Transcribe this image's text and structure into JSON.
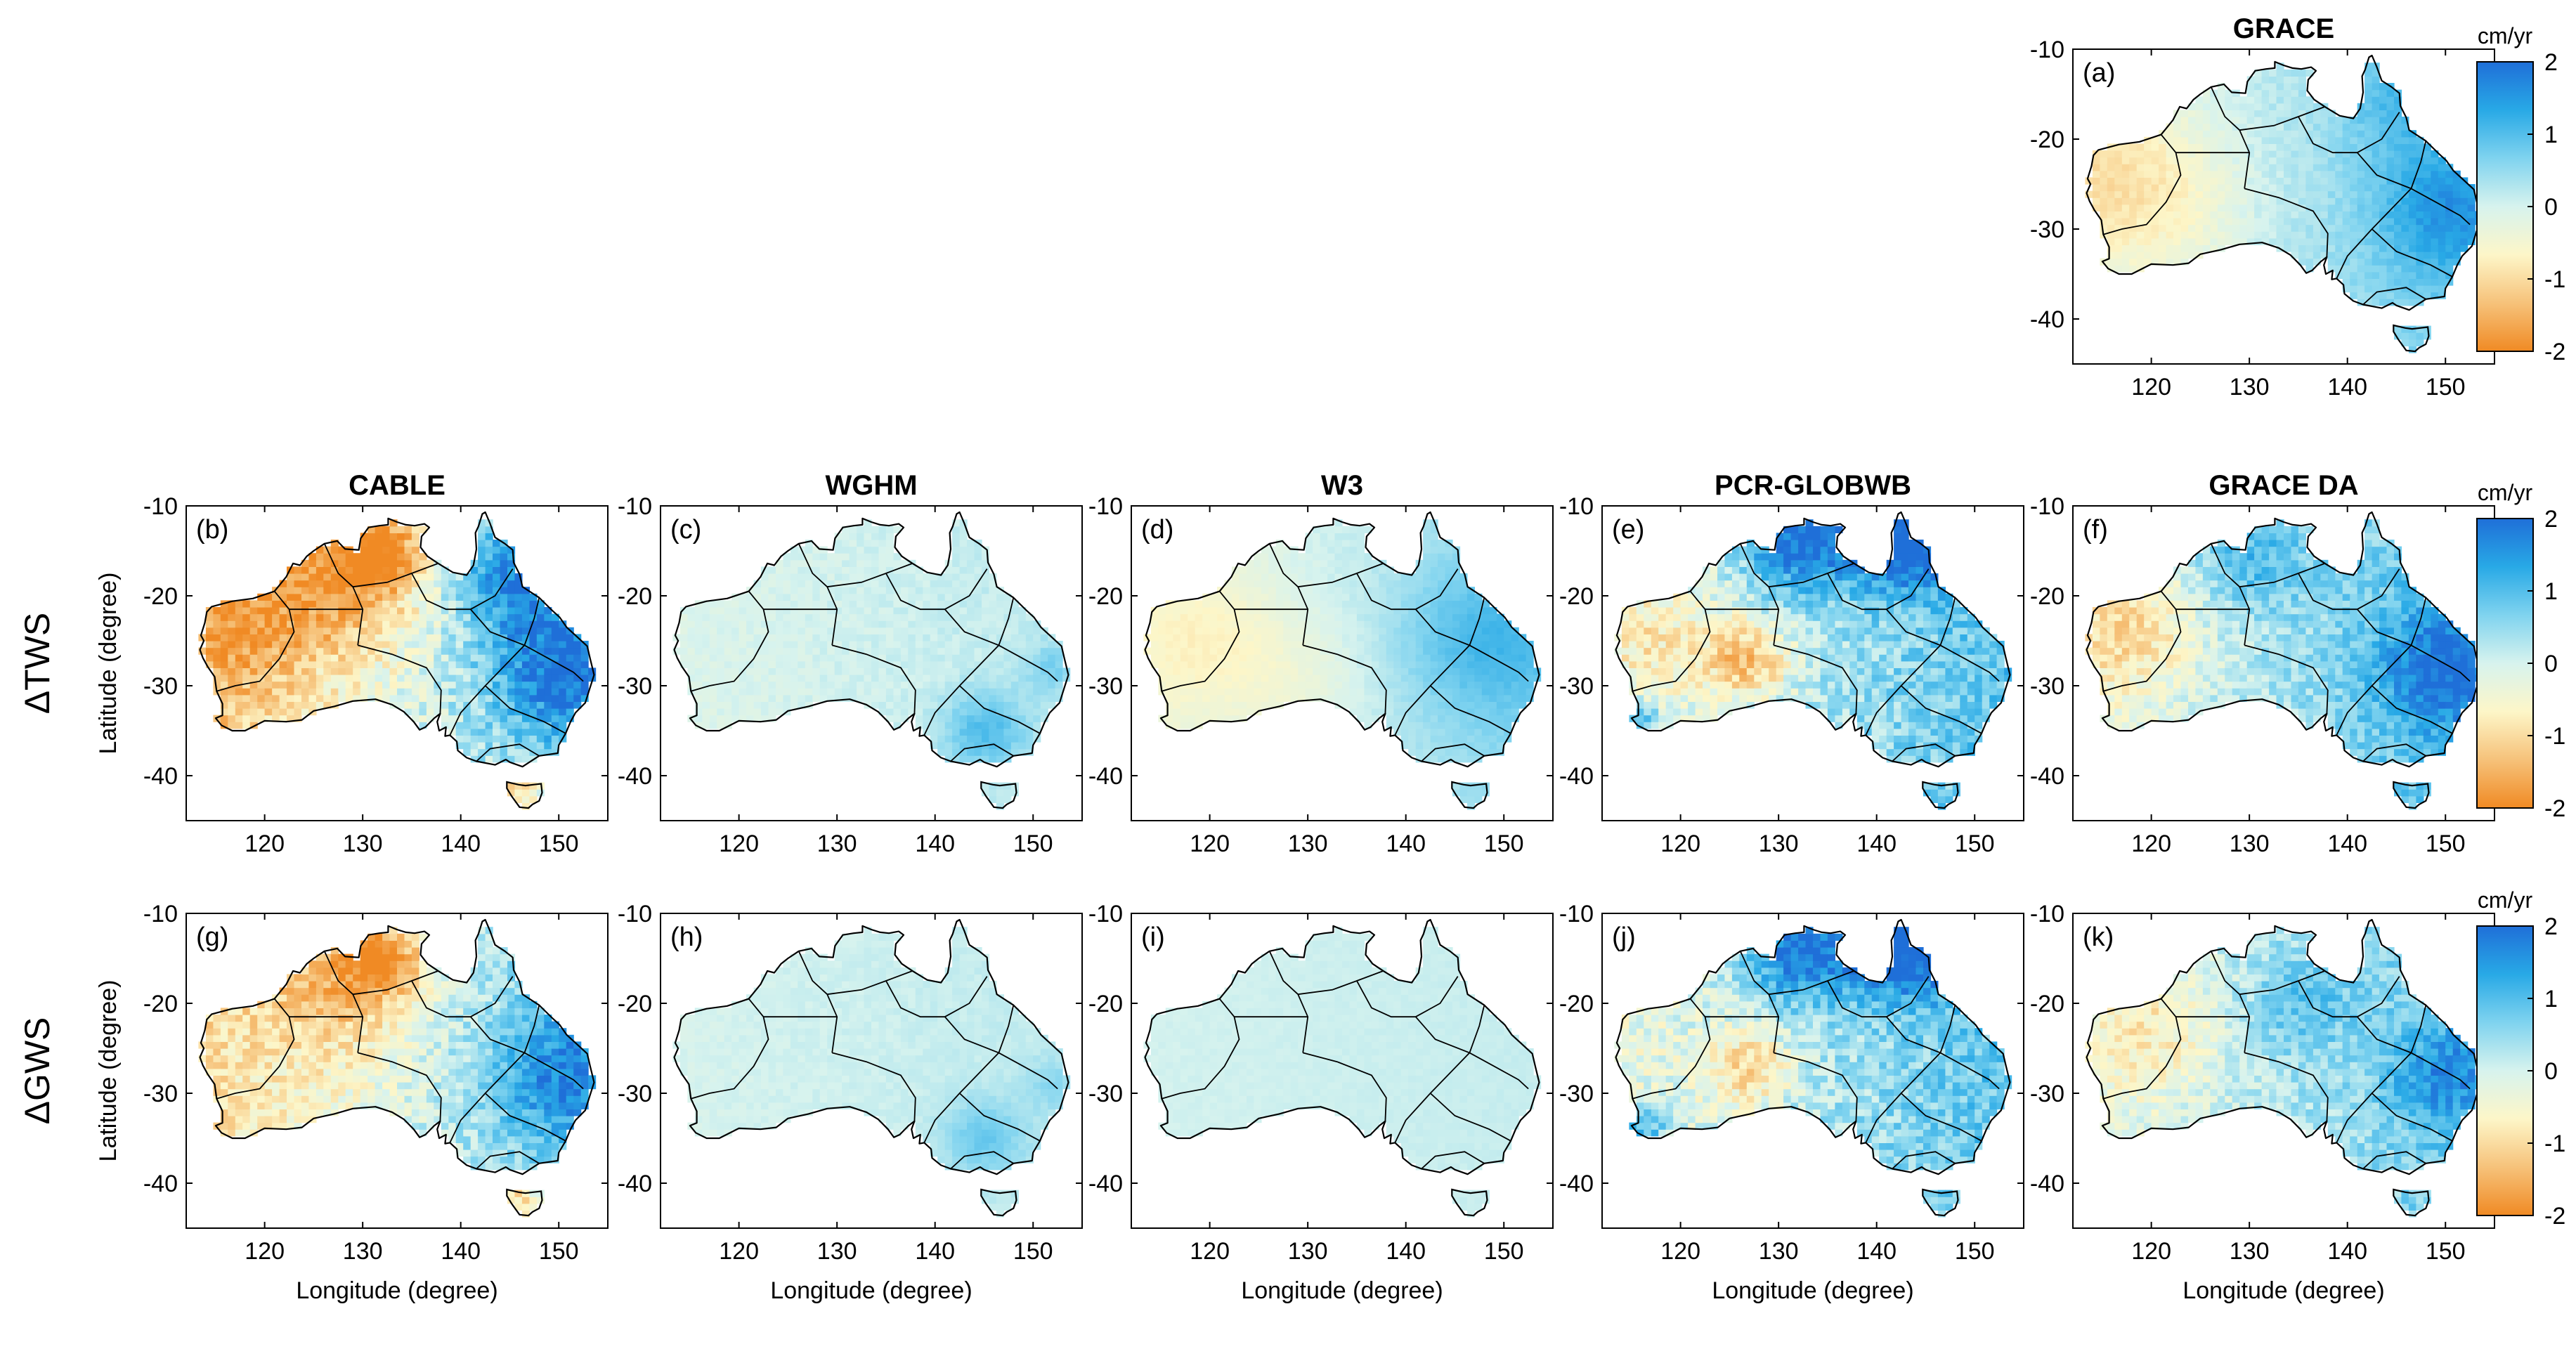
{
  "row_labels": [
    "ΔTWS",
    "ΔGWS"
  ],
  "panels": [
    {
      "id": "a",
      "label": "(a)",
      "title": "GRACE",
      "row": 0,
      "col": 4,
      "show_ylabel": false,
      "show_xlabel": false,
      "scheme": {
        "base": 0.25,
        "amp": 0.55,
        "ns": 0.15,
        "hot": [
          {
            "lon": 116,
            "lat": -24,
            "r": 7,
            "v": -0.7
          },
          {
            "lon": 124,
            "lat": -28,
            "r": 5,
            "v": -0.3
          },
          {
            "lon": 150,
            "lat": -28,
            "r": 5,
            "v": 0.9
          },
          {
            "lon": 145,
            "lat": -16,
            "r": 4,
            "v": 0.5
          }
        ]
      }
    },
    {
      "id": "b",
      "label": "(b)",
      "title": "CABLE",
      "row": 1,
      "col": 0,
      "show_ylabel": true,
      "show_xlabel": false,
      "scheme": {
        "base": -0.2,
        "amp": 1.1,
        "ns": 0.5,
        "hot": [
          {
            "lon": 128,
            "lat": -18,
            "r": 6,
            "v": -1.2
          },
          {
            "lon": 132,
            "lat": -15,
            "r": 3,
            "v": -1.4
          },
          {
            "lon": 118,
            "lat": -24,
            "r": 5,
            "v": -0.6
          },
          {
            "lon": 146,
            "lat": -42,
            "r": 2,
            "v": -1.5
          },
          {
            "lon": 150,
            "lat": -28,
            "r": 5,
            "v": 1.3
          },
          {
            "lon": 145,
            "lat": -18,
            "r": 4,
            "v": 1.2
          }
        ]
      }
    },
    {
      "id": "c",
      "label": "(c)",
      "title": "WGHM",
      "row": 1,
      "col": 1,
      "show_ylabel": false,
      "show_xlabel": false,
      "scheme": {
        "base": 0.05,
        "amp": 0.15,
        "ns": 0.12,
        "hot": [
          {
            "lon": 145,
            "lat": -35,
            "r": 3,
            "v": 0.9
          },
          {
            "lon": 152,
            "lat": -28,
            "r": 2,
            "v": 0.5
          }
        ]
      }
    },
    {
      "id": "d",
      "label": "(d)",
      "title": "W3",
      "row": 1,
      "col": 2,
      "show_ylabel": false,
      "show_xlabel": false,
      "scheme": {
        "base": 0.1,
        "amp": 0.45,
        "ns": 0.08,
        "hot": [
          {
            "lon": 120,
            "lat": -25,
            "r": 6,
            "v": -0.5
          },
          {
            "lon": 130,
            "lat": -30,
            "r": 5,
            "v": -0.3
          },
          {
            "lon": 148,
            "lat": -25,
            "r": 6,
            "v": 0.7
          }
        ]
      }
    },
    {
      "id": "e",
      "label": "(e)",
      "title": "PCR-GLOBWB",
      "row": 1,
      "col": 3,
      "show_ylabel": false,
      "show_xlabel": false,
      "scheme": {
        "base": 0.25,
        "amp": 0.7,
        "ns": 0.5,
        "hot": [
          {
            "lon": 132,
            "lat": -14,
            "r": 4,
            "v": 1.8
          },
          {
            "lon": 143,
            "lat": -14,
            "r": 4,
            "v": 1.8
          },
          {
            "lon": 127,
            "lat": -27,
            "r": 3,
            "v": -1.4
          },
          {
            "lon": 118,
            "lat": -25,
            "r": 4,
            "v": -0.5
          },
          {
            "lon": 115,
            "lat": -34,
            "r": 2,
            "v": 1.5
          }
        ]
      }
    },
    {
      "id": "f",
      "label": "(f)",
      "title": "GRACE DA",
      "row": 1,
      "col": 4,
      "show_ylabel": false,
      "show_xlabel": false,
      "scheme": {
        "base": 0.35,
        "amp": 0.65,
        "ns": 0.4,
        "hot": [
          {
            "lon": 118,
            "lat": -24,
            "r": 5,
            "v": -0.9
          },
          {
            "lon": 150,
            "lat": -28,
            "r": 5,
            "v": 1.2
          },
          {
            "lon": 130,
            "lat": -16,
            "r": 4,
            "v": 0.8
          }
        ]
      }
    },
    {
      "id": "g",
      "label": "(g)",
      "title": "",
      "row": 2,
      "col": 0,
      "show_ylabel": true,
      "show_xlabel": true,
      "scheme": {
        "base": -0.1,
        "amp": 0.9,
        "ns": 0.45,
        "hot": [
          {
            "lon": 128,
            "lat": -18,
            "r": 6,
            "v": -1.0
          },
          {
            "lon": 132,
            "lat": -15,
            "r": 3,
            "v": -1.4
          },
          {
            "lon": 146,
            "lat": -42,
            "r": 2,
            "v": -1.5
          },
          {
            "lon": 150,
            "lat": -28,
            "r": 5,
            "v": 1.1
          }
        ]
      }
    },
    {
      "id": "h",
      "label": "(h)",
      "title": "",
      "row": 2,
      "col": 1,
      "show_ylabel": false,
      "show_xlabel": true,
      "scheme": {
        "base": 0.08,
        "amp": 0.1,
        "ns": 0.08,
        "hot": [
          {
            "lon": 145,
            "lat": -35,
            "r": 3,
            "v": 0.7
          },
          {
            "lon": 152,
            "lat": -29,
            "r": 2,
            "v": 0.4
          }
        ]
      }
    },
    {
      "id": "i",
      "label": "(i)",
      "title": "",
      "row": 2,
      "col": 2,
      "show_ylabel": false,
      "show_xlabel": true,
      "scheme": {
        "base": 0.08,
        "amp": 0.05,
        "ns": 0.04,
        "hot": []
      }
    },
    {
      "id": "j",
      "label": "(j)",
      "title": "",
      "row": 2,
      "col": 3,
      "show_ylabel": false,
      "show_xlabel": true,
      "scheme": {
        "base": 0.25,
        "amp": 0.65,
        "ns": 0.5,
        "hot": [
          {
            "lon": 132,
            "lat": -14,
            "r": 4,
            "v": 1.8
          },
          {
            "lon": 143,
            "lat": -14,
            "r": 4,
            "v": 1.8
          },
          {
            "lon": 127,
            "lat": -27,
            "r": 3,
            "v": -1.2
          },
          {
            "lon": 116,
            "lat": -34,
            "r": 2,
            "v": 1.5
          }
        ]
      }
    },
    {
      "id": "k",
      "label": "(k)",
      "title": "",
      "row": 2,
      "col": 4,
      "show_ylabel": false,
      "show_xlabel": true,
      "scheme": {
        "base": 0.25,
        "amp": 0.55,
        "ns": 0.4,
        "hot": [
          {
            "lon": 120,
            "lat": -23,
            "r": 5,
            "v": -0.7
          },
          {
            "lon": 150,
            "lat": -28,
            "r": 4,
            "v": 1.0
          },
          {
            "lon": 135,
            "lat": -20,
            "r": 4,
            "v": 0.6
          }
        ]
      }
    }
  ],
  "axes": {
    "xlim": [
      112,
      155
    ],
    "ylim": [
      -45,
      -10
    ],
    "xticks": [
      120,
      130,
      140,
      150
    ],
    "yticks": [
      -10,
      -20,
      -30,
      -40
    ],
    "xlabel": "Longitude (degree)",
    "ylabel": "Latitude (degree)"
  },
  "colorbar": {
    "unit": "cm/yr",
    "range": [
      -2,
      2
    ],
    "ticks": [
      2,
      1,
      0,
      -1,
      -2
    ],
    "stops": [
      "#f08a24",
      "#f6c27a",
      "#fdf6c8",
      "#d7f3ee",
      "#7fd3ef",
      "#28a9e6",
      "#1f6fd8"
    ]
  }
}
